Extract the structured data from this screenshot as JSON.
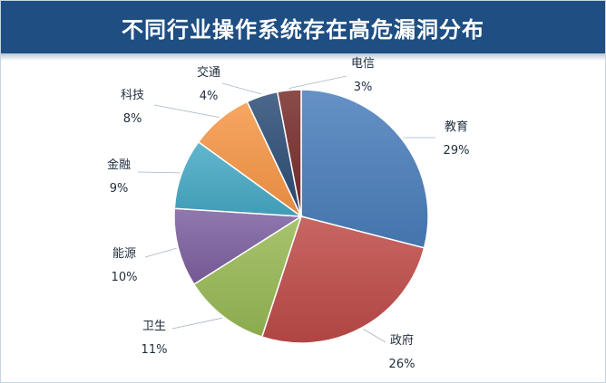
{
  "chart_data": {
    "type": "pie",
    "title": "不同行业操作系统存在高危漏洞分布",
    "categories": [
      "教育",
      "政府",
      "卫生",
      "能源",
      "金融",
      "科技",
      "交通",
      "电信"
    ],
    "values": [
      29,
      26,
      11,
      10,
      9,
      8,
      4,
      3
    ],
    "value_labels": [
      "29%",
      "26%",
      "11%",
      "10%",
      "9%",
      "8%",
      "4%",
      "3%"
    ],
    "colors": [
      "#4a7ebb",
      "#be4b48",
      "#98b954",
      "#7d60a0",
      "#46aac5",
      "#f79646",
      "#2c4d75",
      "#772c2a"
    ],
    "legend": "none",
    "label_placement": "outside-with-leader-lines"
  }
}
